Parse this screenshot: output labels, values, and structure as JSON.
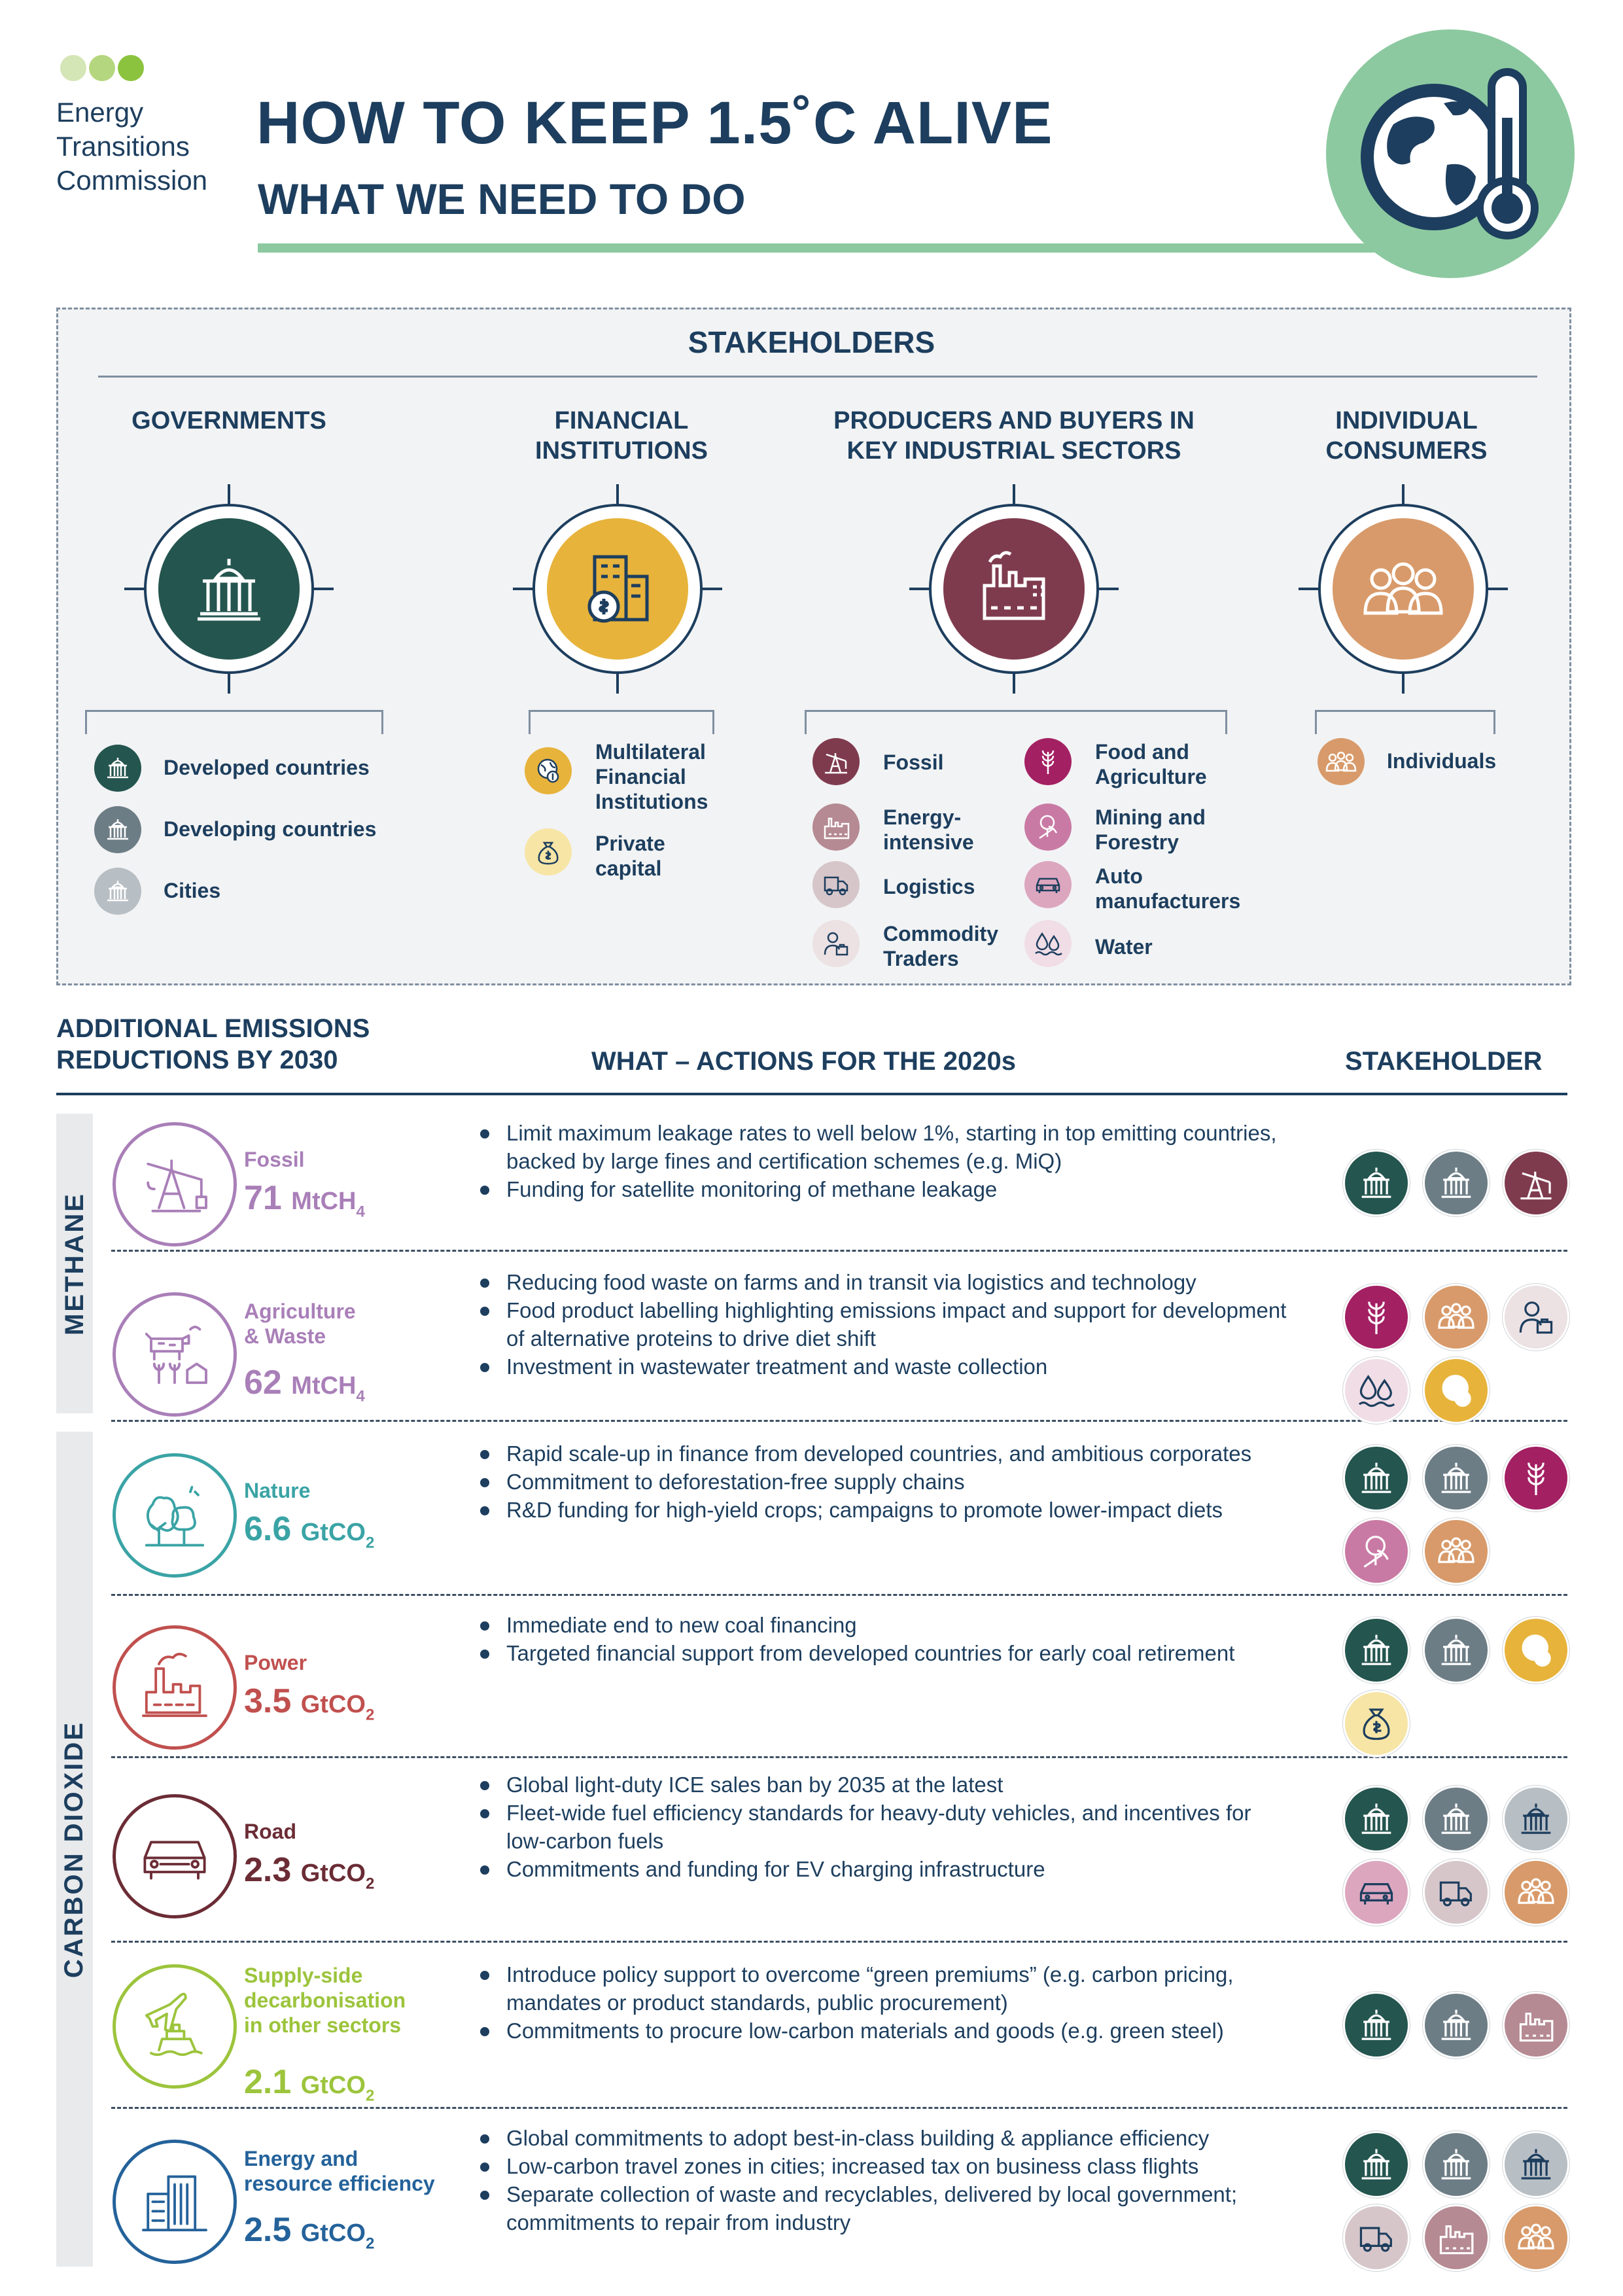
{
  "org": {
    "lines": [
      "Energy",
      "Transitions",
      "Commission"
    ],
    "dot_colors": [
      "#d4e6b5",
      "#b4d67e",
      "#8cc33e"
    ]
  },
  "title": {
    "line1": "HOW TO KEEP 1.5˚C ALIVE",
    "line2": "WHAT WE NEED TO DO"
  },
  "header_icon": "globe-thermometer-icon",
  "stakeholders": {
    "heading": "STAKEHOLDERS",
    "groups": [
      {
        "title": "GOVERNMENTS",
        "icon": "government-building-icon",
        "color": "#24554f",
        "items": [
          {
            "label": "Developed countries",
            "icon": "government-building-icon",
            "color": "#24554f"
          },
          {
            "label": "Developing countries",
            "icon": "government-building-icon",
            "color": "#6d7d86"
          },
          {
            "label": "Cities",
            "icon": "government-building-icon",
            "color": "#b7bec4"
          }
        ]
      },
      {
        "title": "FINANCIAL\nINSTITUTIONS",
        "icon": "bank-money-bag-icon",
        "color": "#e7b33b",
        "items": [
          {
            "label": "Multilateral\nFinancial\nInstitutions",
            "icon": "globe-coin-icon",
            "color": "#e7b33b"
          },
          {
            "label": "Private\ncapital",
            "icon": "money-bag-icon",
            "color": "#f7e5a6"
          }
        ]
      },
      {
        "title": "PRODUCERS AND BUYERS IN\nKEY INDUSTRIAL SECTORS",
        "icon": "factory-icon",
        "color": "#7f3b4e",
        "items": [
          {
            "label": "Fossil",
            "icon": "oil-pump-icon",
            "color": "#7f3b4e"
          },
          {
            "label": "Food and\nAgriculture",
            "icon": "wheat-icon",
            "color": "#a32063"
          },
          {
            "label": "Energy-\nintensive",
            "icon": "factory-icon",
            "color": "#b58a93"
          },
          {
            "label": "Mining and\nForestry",
            "icon": "tree-pickaxe-icon",
            "color": "#c97aa4"
          },
          {
            "label": "Logistics",
            "icon": "truck-icon",
            "color": "#d6c6ca"
          },
          {
            "label": "Auto\nmanufacturers",
            "icon": "car-icon",
            "color": "#dca6bf"
          },
          {
            "label": "Commodity\nTraders",
            "icon": "trader-icon",
            "color": "#ece1e3"
          },
          {
            "label": "Water",
            "icon": "water-drops-icon",
            "color": "#f0dde6"
          }
        ]
      },
      {
        "title": "INDIVIDUAL\nCONSUMERS",
        "icon": "people-group-icon",
        "color": "#d89a6a",
        "items": [
          {
            "label": "Individuals",
            "icon": "people-group-icon",
            "color": "#d89a6a"
          }
        ]
      }
    ]
  },
  "table": {
    "col1": "ADDITIONAL EMISSIONS\nREDUCTIONS BY 2030",
    "col2": "WHAT – ACTIONS FOR THE 2020s",
    "col3": "STAKEHOLDER",
    "groups": [
      {
        "label": "METHANE",
        "rows": [
          0,
          1
        ]
      },
      {
        "label": "CARBON  DIOXIDE",
        "rows": [
          2,
          3,
          4,
          5,
          6
        ]
      }
    ],
    "rows": [
      {
        "name": "Fossil",
        "value": "71",
        "unit": "MtCH",
        "sub": "4",
        "color": "#a97fb8",
        "icon": "oil-pump-icon",
        "actions": [
          "Limit maximum leakage rates to well below 1%, starting in top emitting countries, backed by large fines and certification schemes (e.g. MiQ)",
          "Funding for satellite monitoring of methane leakage"
        ],
        "stakeholders": [
          "developed-countries",
          "developing-countries",
          "fossil"
        ]
      },
      {
        "name": "Agriculture\n& Waste",
        "value": "62",
        "unit": "MtCH",
        "sub": "4",
        "color": "#a97fb8",
        "icon": "cow-crops-icon",
        "actions": [
          "Reducing food waste on farms and in transit via logistics and technology",
          "Food product labelling highlighting emissions impact and support for development of alternative proteins to drive diet shift",
          "Investment in wastewater treatment and waste collection"
        ],
        "stakeholders": [
          "food-agriculture",
          "individuals",
          "commodity-traders",
          "water",
          "multilateral-fi"
        ]
      },
      {
        "name": "Nature",
        "value": "6.6",
        "unit": "GtCO",
        "sub": "2",
        "color": "#3aa3a5",
        "icon": "forest-icon",
        "actions": [
          "Rapid scale-up in finance from developed countries, and ambitious corporates",
          "Commitment to deforestation-free supply chains",
          "R&D funding for high-yield crops; campaigns to promote lower-impact diets"
        ],
        "stakeholders": [
          "developed-countries",
          "developing-countries",
          "food-agriculture",
          "mining-forestry",
          "individuals"
        ]
      },
      {
        "name": "Power",
        "value": "3.5",
        "unit": "GtCO",
        "sub": "2",
        "color": "#c0504e",
        "icon": "power-plant-icon",
        "actions": [
          "Immediate end to new coal financing",
          "Targeted financial support from developed countries for early coal retirement"
        ],
        "stakeholders": [
          "developed-countries",
          "developing-countries",
          "multilateral-fi",
          "private-capital"
        ]
      },
      {
        "name": "Road",
        "value": "2.3",
        "unit": "GtCO",
        "sub": "2",
        "color": "#6b2c35",
        "icon": "car-icon",
        "actions": [
          "Global light-duty ICE sales ban by 2035 at the latest",
          "Fleet-wide fuel efficiency standards for heavy-duty vehicles, and incentives for low-carbon fuels",
          "Commitments and funding for EV charging infrastructure"
        ],
        "stakeholders": [
          "developed-countries",
          "developing-countries",
          "cities",
          "auto-manufacturers",
          "logistics",
          "individuals"
        ]
      },
      {
        "name": "Supply-side\ndecarbonisation\nin other sectors",
        "value": "2.1",
        "unit": "GtCO",
        "sub": "2",
        "color": "#9cc43c",
        "icon": "plane-ship-icon",
        "actions": [
          "Introduce policy support to overcome “green premiums” (e.g. carbon pricing, mandates or product standards, public procurement)",
          "Commitments to procure low-carbon materials and goods (e.g. green steel)"
        ],
        "stakeholders": [
          "developed-countries",
          "developing-countries",
          "energy-intensive"
        ]
      },
      {
        "name": "Energy and\nresource efficiency",
        "value": "2.5",
        "unit": "GtCO",
        "sub": "2",
        "color": "#24629a",
        "icon": "buildings-icon",
        "actions": [
          "Global commitments to adopt best-in-class building & appliance efficiency",
          "Low-carbon travel zones in cities; increased tax on business class flights",
          "Separate collection of waste and recyclables, delivered by local government; commitments to repair from industry"
        ],
        "stakeholders": [
          "developed-countries",
          "developing-countries",
          "cities",
          "logistics",
          "energy-intensive",
          "individuals"
        ]
      }
    ]
  },
  "stakeholder_palette": {
    "developed-countries": {
      "color": "#24554f",
      "icon": "government-building-icon"
    },
    "developing-countries": {
      "color": "#6d7d86",
      "icon": "government-building-icon"
    },
    "cities": {
      "color": "#b7bec4",
      "icon": "government-building-icon"
    },
    "multilateral-fi": {
      "color": "#e7b33b",
      "icon": "globe-coin-icon"
    },
    "private-capital": {
      "color": "#f7e5a6",
      "icon": "money-bag-icon"
    },
    "fossil": {
      "color": "#7f3b4e",
      "icon": "oil-pump-icon"
    },
    "food-agriculture": {
      "color": "#a32063",
      "icon": "wheat-icon"
    },
    "energy-intensive": {
      "color": "#b58a93",
      "icon": "factory-icon"
    },
    "mining-forestry": {
      "color": "#c97aa4",
      "icon": "tree-pickaxe-icon"
    },
    "logistics": {
      "color": "#d6c6ca",
      "icon": "truck-icon"
    },
    "auto-manufacturers": {
      "color": "#dca6bf",
      "icon": "car-icon"
    },
    "commodity-traders": {
      "color": "#ece1e3",
      "icon": "trader-icon"
    },
    "water": {
      "color": "#f0dde6",
      "icon": "water-drops-icon"
    },
    "individuals": {
      "color": "#d89a6a",
      "icon": "people-group-icon"
    }
  }
}
